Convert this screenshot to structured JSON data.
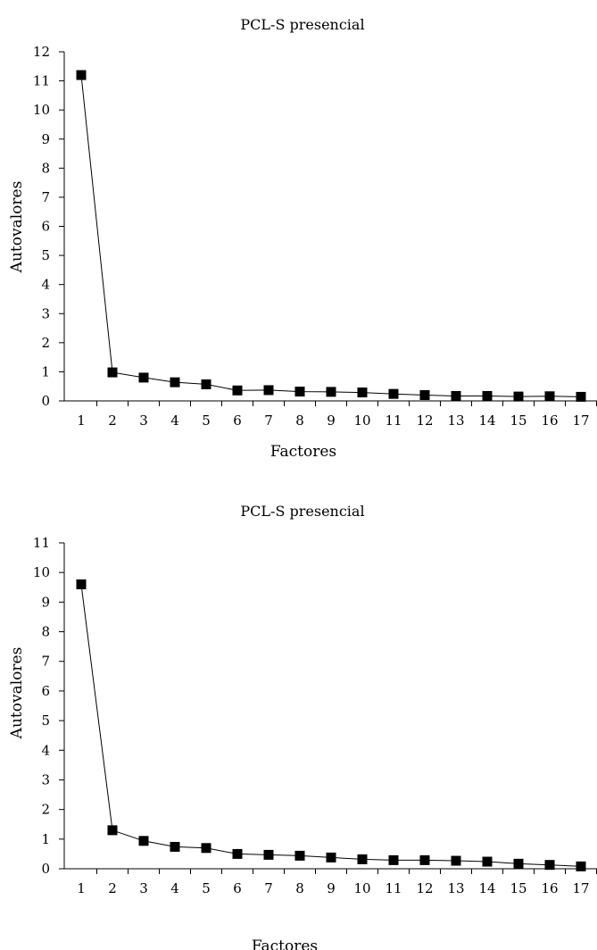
{
  "chart_data": [
    {
      "type": "line",
      "title": "PCL-S presencial",
      "xlabel": "Factores",
      "ylabel": "Autovalores",
      "categories": [
        "1",
        "2",
        "3",
        "4",
        "5",
        "6",
        "7",
        "8",
        "9",
        "10",
        "11",
        "12",
        "13",
        "14",
        "15",
        "16",
        "17"
      ],
      "ylim": [
        0,
        12
      ],
      "yticks": [
        0,
        1,
        2,
        3,
        4,
        5,
        6,
        7,
        8,
        9,
        10,
        11,
        12
      ],
      "values": [
        11.2,
        0.98,
        0.8,
        0.64,
        0.57,
        0.36,
        0.37,
        0.32,
        0.31,
        0.29,
        0.24,
        0.2,
        0.17,
        0.17,
        0.15,
        0.16,
        0.14
      ],
      "marker": "square",
      "color": "#000000",
      "grid": false
    },
    {
      "type": "line",
      "title": "PCL-S presencial",
      "xlabel": "Factores",
      "ylabel": "Autovalores",
      "categories": [
        "1",
        "2",
        "3",
        "4",
        "5",
        "6",
        "7",
        "8",
        "9",
        "10",
        "11",
        "12",
        "13",
        "14",
        "15",
        "16",
        "17"
      ],
      "ylim": [
        0,
        11
      ],
      "yticks": [
        0,
        1,
        2,
        3,
        4,
        5,
        6,
        7,
        8,
        9,
        10,
        11
      ],
      "values": [
        9.6,
        1.3,
        0.94,
        0.74,
        0.7,
        0.5,
        0.47,
        0.44,
        0.38,
        0.32,
        0.29,
        0.29,
        0.27,
        0.24,
        0.17,
        0.13,
        0.08
      ],
      "marker": "square",
      "color": "#000000",
      "grid": false
    }
  ]
}
